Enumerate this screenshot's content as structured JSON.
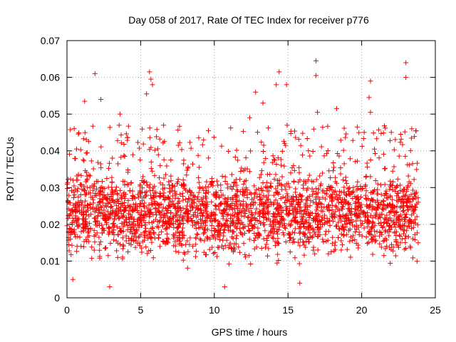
{
  "chart_data": {
    "type": "scatter",
    "title": "Day 058 of 2017, Rate Of TEC Index for receiver p776",
    "xlabel": "GPS time / hours",
    "ylabel": "ROTI / TECUs",
    "xlim": [
      0,
      25
    ],
    "ylim": [
      0,
      0.07
    ],
    "xticks": [
      0,
      5,
      10,
      15,
      20,
      25
    ],
    "yticks": [
      0,
      0.01,
      0.02,
      0.03,
      0.04,
      0.05,
      0.06,
      0.07
    ],
    "xtick_labels": [
      "0",
      "5",
      "10",
      "15",
      "20",
      "25"
    ],
    "ytick_labels": [
      "0",
      "0.01",
      "0.02",
      "0.03",
      "0.04",
      "0.05",
      "0.06",
      "0.07"
    ],
    "grid": true,
    "marker": "+",
    "color": "#ff0000",
    "x_range_of_points": [
      0.0,
      23.85
    ],
    "typical_range": [
      0.007,
      0.035
    ],
    "notable_peaks": [
      {
        "x": 1.9,
        "y": 0.061
      },
      {
        "x": 1.2,
        "y": 0.0535
      },
      {
        "x": 2.3,
        "y": 0.054
      },
      {
        "x": 3.6,
        "y": 0.05
      },
      {
        "x": 5.4,
        "y": 0.0555
      },
      {
        "x": 5.6,
        "y": 0.0615
      },
      {
        "x": 5.7,
        "y": 0.0595
      },
      {
        "x": 5.8,
        "y": 0.058
      },
      {
        "x": 9.6,
        "y": 0.0455
      },
      {
        "x": 12.4,
        "y": 0.049
      },
      {
        "x": 12.8,
        "y": 0.056
      },
      {
        "x": 13.3,
        "y": 0.053
      },
      {
        "x": 14.4,
        "y": 0.0615
      },
      {
        "x": 14.2,
        "y": 0.058
      },
      {
        "x": 14.9,
        "y": 0.058
      },
      {
        "x": 16.9,
        "y": 0.0645
      },
      {
        "x": 16.9,
        "y": 0.0605
      },
      {
        "x": 17.0,
        "y": 0.0505
      },
      {
        "x": 18.3,
        "y": 0.0515
      },
      {
        "x": 19.7,
        "y": 0.0465
      },
      {
        "x": 20.6,
        "y": 0.059
      },
      {
        "x": 20.5,
        "y": 0.0545
      },
      {
        "x": 20.6,
        "y": 0.0505
      },
      {
        "x": 23.0,
        "y": 0.064
      },
      {
        "x": 23.0,
        "y": 0.06
      },
      {
        "x": 23.4,
        "y": 0.046
      },
      {
        "x": 0.4,
        "y": 0.005
      },
      {
        "x": 2.9,
        "y": 0.003
      },
      {
        "x": 10.7,
        "y": 0.003
      },
      {
        "x": 15.8,
        "y": 0.004
      }
    ]
  }
}
